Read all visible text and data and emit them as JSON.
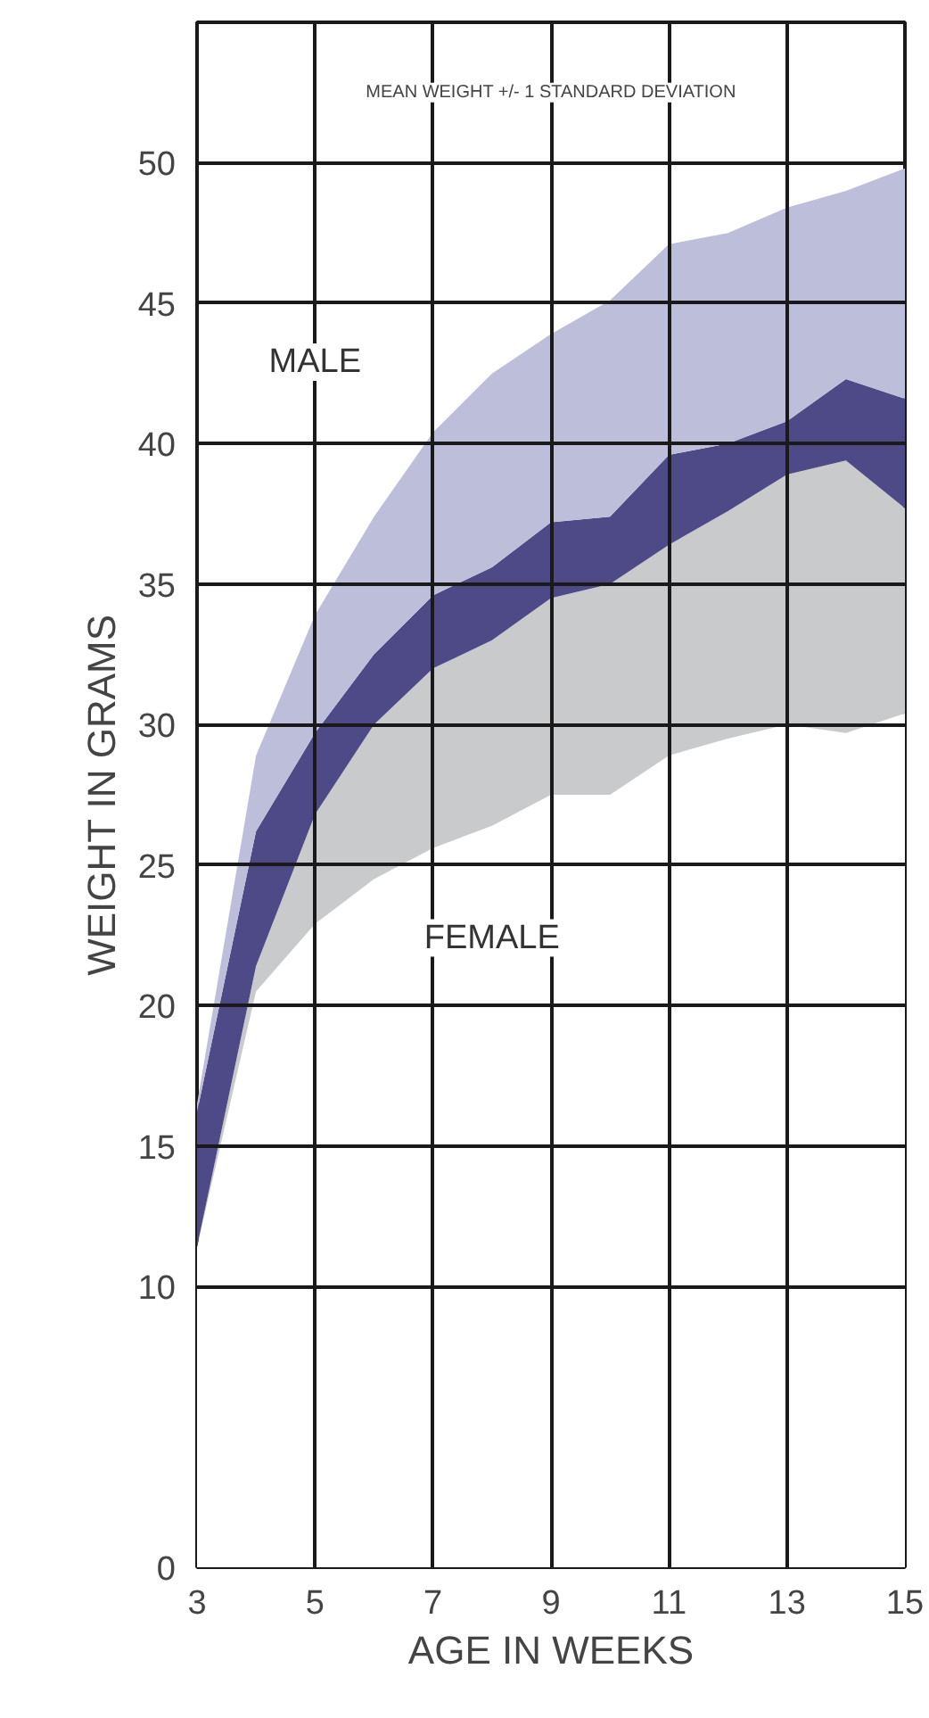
{
  "chart_data": {
    "type": "area",
    "stacked": true,
    "title": "MEAN WEIGHT +/- 1 STANDARD DEVIATION",
    "xlabel": "AGE IN WEEKS",
    "ylabel": "WEIGHT IN GRAMS",
    "x": [
      3,
      4,
      5,
      6,
      7,
      8,
      9,
      10,
      11,
      12,
      13,
      14,
      15
    ],
    "series": [
      {
        "color": "#ffffff",
        "values": [
          11.4,
          20.5,
          22.9,
          24.5,
          25.6,
          26.4,
          27.5,
          27.5,
          28.9,
          29.5,
          30,
          29.7,
          30.4
        ]
      },
      {
        "name": "FEMALE",
        "color": "#c9cacc",
        "values": [
          0,
          0.9,
          3.9,
          5.5,
          6.4,
          6.6,
          7,
          7.5,
          7.5,
          8.1,
          8.9,
          9.7,
          7.3
        ]
      },
      {
        "color": "#4e4a88",
        "values": [
          4.8,
          4.8,
          2.9,
          2.5,
          2.6,
          2.6,
          2.7,
          2.4,
          3.2,
          2.4,
          1.9,
          2.9,
          3.9
        ]
      },
      {
        "name": "MALE",
        "color": "#bdbed9",
        "values": [
          0.3,
          2.7,
          4.2,
          4.9,
          5.8,
          6.9,
          6.7,
          7.7,
          7.5,
          7.5,
          7.6,
          6.7,
          8.2
        ]
      }
    ],
    "xlim": [
      3,
      15
    ],
    "ylim": [
      0,
      55
    ],
    "xticks": [
      3,
      5,
      7,
      9,
      11,
      13,
      15
    ],
    "yticks": [
      0,
      10,
      15,
      20,
      25,
      30,
      35,
      40,
      45,
      50
    ],
    "grid": true
  }
}
